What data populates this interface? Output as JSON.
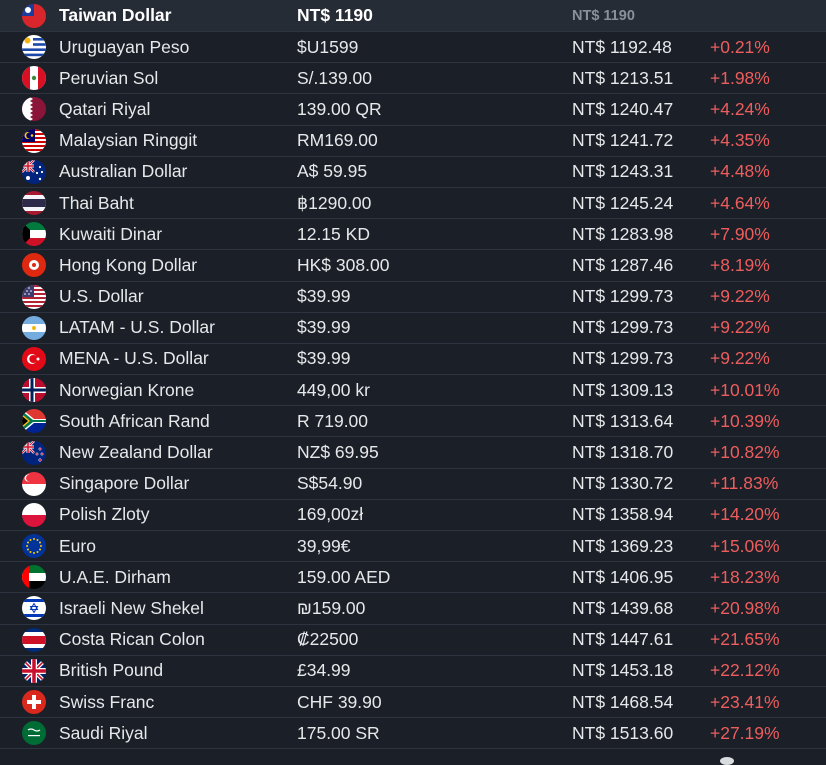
{
  "base": {
    "name": "Taiwan Dollar",
    "price": "NT$ 1190",
    "converted": "NT$ 1190",
    "flag_icon": "taiwan-flag-icon"
  },
  "rows": [
    {
      "name": "Uruguayan Peso",
      "price": "$U1599",
      "converted": "NT$ 1192.48",
      "diff": "+0.21%",
      "flag_icon": "uruguay-flag-icon"
    },
    {
      "name": "Peruvian Sol",
      "price": "S/.139.00",
      "converted": "NT$ 1213.51",
      "diff": "+1.98%",
      "flag_icon": "peru-flag-icon"
    },
    {
      "name": "Qatari Riyal",
      "price": "139.00 QR",
      "converted": "NT$ 1240.47",
      "diff": "+4.24%",
      "flag_icon": "qatar-flag-icon"
    },
    {
      "name": "Malaysian Ringgit",
      "price": "RM169.00",
      "converted": "NT$ 1241.72",
      "diff": "+4.35%",
      "flag_icon": "malaysia-flag-icon"
    },
    {
      "name": "Australian Dollar",
      "price": "A$ 59.95",
      "converted": "NT$ 1243.31",
      "diff": "+4.48%",
      "flag_icon": "australia-flag-icon"
    },
    {
      "name": "Thai Baht",
      "price": "฿1290.00",
      "converted": "NT$ 1245.24",
      "diff": "+4.64%",
      "flag_icon": "thailand-flag-icon"
    },
    {
      "name": "Kuwaiti Dinar",
      "price": "12.15 KD",
      "converted": "NT$ 1283.98",
      "diff": "+7.90%",
      "flag_icon": "kuwait-flag-icon"
    },
    {
      "name": "Hong Kong Dollar",
      "price": "HK$ 308.00",
      "converted": "NT$ 1287.46",
      "diff": "+8.19%",
      "flag_icon": "hong-kong-flag-icon"
    },
    {
      "name": "U.S. Dollar",
      "price": "$39.99",
      "converted": "NT$ 1299.73",
      "diff": "+9.22%",
      "flag_icon": "usa-flag-icon"
    },
    {
      "name": "LATAM - U.S. Dollar",
      "price": "$39.99",
      "converted": "NT$ 1299.73",
      "diff": "+9.22%",
      "flag_icon": "argentina-flag-icon"
    },
    {
      "name": "MENA - U.S. Dollar",
      "price": "$39.99",
      "converted": "NT$ 1299.73",
      "diff": "+9.22%",
      "flag_icon": "turkey-flag-icon"
    },
    {
      "name": "Norwegian Krone",
      "price": "449,00 kr",
      "converted": "NT$ 1309.13",
      "diff": "+10.01%",
      "flag_icon": "norway-flag-icon"
    },
    {
      "name": "South African Rand",
      "price": "R 719.00",
      "converted": "NT$ 1313.64",
      "diff": "+10.39%",
      "flag_icon": "south-africa-flag-icon"
    },
    {
      "name": "New Zealand Dollar",
      "price": "NZ$ 69.95",
      "converted": "NT$ 1318.70",
      "diff": "+10.82%",
      "flag_icon": "new-zealand-flag-icon"
    },
    {
      "name": "Singapore Dollar",
      "price": "S$54.90",
      "converted": "NT$ 1330.72",
      "diff": "+11.83%",
      "flag_icon": "singapore-flag-icon"
    },
    {
      "name": "Polish Zloty",
      "price": "169,00zł",
      "converted": "NT$ 1358.94",
      "diff": "+14.20%",
      "flag_icon": "poland-flag-icon"
    },
    {
      "name": "Euro",
      "price": "39,99€",
      "converted": "NT$ 1369.23",
      "diff": "+15.06%",
      "flag_icon": "eu-flag-icon"
    },
    {
      "name": "U.A.E. Dirham",
      "price": "159.00 AED",
      "converted": "NT$ 1406.95",
      "diff": "+18.23%",
      "flag_icon": "uae-flag-icon"
    },
    {
      "name": "Israeli New Shekel",
      "price": "₪159.00",
      "converted": "NT$ 1439.68",
      "diff": "+20.98%",
      "flag_icon": "israel-flag-icon"
    },
    {
      "name": "Costa Rican Colon",
      "price": "₡22500",
      "converted": "NT$ 1447.61",
      "diff": "+21.65%",
      "flag_icon": "costa-rica-flag-icon"
    },
    {
      "name": "British Pound",
      "price": "£34.99",
      "converted": "NT$ 1453.18",
      "diff": "+22.12%",
      "flag_icon": "uk-flag-icon"
    },
    {
      "name": "Swiss Franc",
      "price": "CHF 39.90",
      "converted": "NT$ 1468.54",
      "diff": "+23.41%",
      "flag_icon": "switzerland-flag-icon"
    },
    {
      "name": "Saudi Riyal",
      "price": "175.00 SR",
      "converted": "NT$ 1513.60",
      "diff": "+27.19%",
      "flag_icon": "saudi-arabia-flag-icon"
    }
  ],
  "colors": {
    "background": "#1b2028",
    "header_background": "#262c36",
    "row_divider": "#2d3440",
    "text": "#e6e8ea",
    "diff_positive": "#ee5d5d"
  }
}
